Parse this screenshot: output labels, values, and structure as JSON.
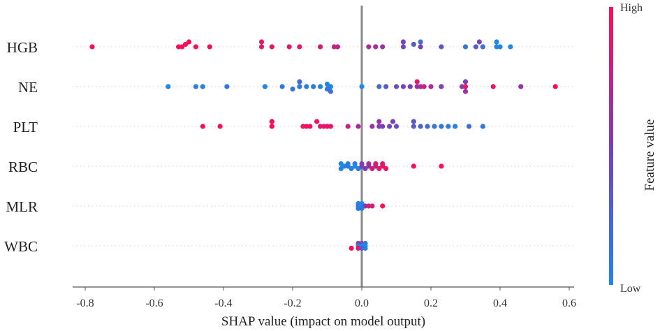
{
  "chart_data": {
    "type": "scatter",
    "subtype": "shap-beeswarm-summary",
    "title": "",
    "xlabel": "SHAP value (impact on model output)",
    "xlim": [
      -0.83,
      0.63
    ],
    "xticks": [
      "-0.8",
      "-0.6",
      "-0.4",
      "-0.2",
      "0.0",
      "0.2",
      "0.4",
      "0.6"
    ],
    "xtick_values": [
      -0.8,
      -0.6,
      -0.4,
      -0.2,
      0.0,
      0.2,
      0.4,
      0.6
    ],
    "colorbar": {
      "label": "Feature value",
      "high": "High",
      "low": "Low",
      "low_color": "#1e88e5",
      "high_color": "#ff0d57"
    },
    "features": [
      {
        "name": "HGB",
        "points": [
          {
            "x": -0.78,
            "v": 1.0,
            "r": 0
          },
          {
            "x": -0.53,
            "v": 1.0,
            "r": 0
          },
          {
            "x": -0.52,
            "v": 1.0,
            "r": 0
          },
          {
            "x": -0.51,
            "v": 1.0,
            "r": -1
          },
          {
            "x": -0.5,
            "v": 1.0,
            "r": -2
          },
          {
            "x": -0.48,
            "v": 1.0,
            "r": 0
          },
          {
            "x": -0.44,
            "v": 1.0,
            "r": 0
          },
          {
            "x": -0.29,
            "v": 0.9,
            "r": -2
          },
          {
            "x": -0.29,
            "v": 0.9,
            "r": 0
          },
          {
            "x": -0.26,
            "v": 0.9,
            "r": 0
          },
          {
            "x": -0.21,
            "v": 0.9,
            "r": 0
          },
          {
            "x": -0.18,
            "v": 0.9,
            "r": 0
          },
          {
            "x": -0.12,
            "v": 0.85,
            "r": 0
          },
          {
            "x": -0.08,
            "v": 0.8,
            "r": 0
          },
          {
            "x": -0.07,
            "v": 0.75,
            "r": 0
          },
          {
            "x": 0.02,
            "v": 0.7,
            "r": 0
          },
          {
            "x": 0.04,
            "v": 0.65,
            "r": 0
          },
          {
            "x": 0.06,
            "v": 0.6,
            "r": 0
          },
          {
            "x": 0.12,
            "v": 0.5,
            "r": -2
          },
          {
            "x": 0.12,
            "v": 0.45,
            "r": 0
          },
          {
            "x": 0.15,
            "v": 0.3,
            "r": -1
          },
          {
            "x": 0.17,
            "v": 0.2,
            "r": -2
          },
          {
            "x": 0.17,
            "v": 0.5,
            "r": 0
          },
          {
            "x": 0.23,
            "v": 0.35,
            "r": 0
          },
          {
            "x": 0.3,
            "v": 0.15,
            "r": 0
          },
          {
            "x": 0.33,
            "v": 0.3,
            "r": 0
          },
          {
            "x": 0.34,
            "v": 0.45,
            "r": -2
          },
          {
            "x": 0.35,
            "v": 0.2,
            "r": 0
          },
          {
            "x": 0.39,
            "v": 0.0,
            "r": -2
          },
          {
            "x": 0.39,
            "v": 0.0,
            "r": 0
          },
          {
            "x": 0.4,
            "v": 0.05,
            "r": 0
          },
          {
            "x": 0.43,
            "v": 0.0,
            "r": 0
          }
        ]
      },
      {
        "name": "NE",
        "points": [
          {
            "x": -0.56,
            "v": 0.0,
            "r": 0
          },
          {
            "x": -0.48,
            "v": 0.05,
            "r": 0
          },
          {
            "x": -0.46,
            "v": 0.05,
            "r": 0
          },
          {
            "x": -0.39,
            "v": 0.1,
            "r": 0
          },
          {
            "x": -0.28,
            "v": 0.05,
            "r": 0
          },
          {
            "x": -0.23,
            "v": 0.1,
            "r": 0
          },
          {
            "x": -0.2,
            "v": 0.15,
            "r": 1
          },
          {
            "x": -0.18,
            "v": 0.2,
            "r": -2
          },
          {
            "x": -0.18,
            "v": 0.1,
            "r": 0
          },
          {
            "x": -0.16,
            "v": 0.05,
            "r": 0
          },
          {
            "x": -0.14,
            "v": 0.1,
            "r": 0
          },
          {
            "x": -0.12,
            "v": 0.0,
            "r": 0
          },
          {
            "x": -0.1,
            "v": 0.05,
            "r": -1
          },
          {
            "x": -0.1,
            "v": 0.1,
            "r": 1
          },
          {
            "x": -0.09,
            "v": 0.05,
            "r": 0
          },
          {
            "x": -0.09,
            "v": 0.2,
            "r": 2
          },
          {
            "x": 0.0,
            "v": 0.0,
            "r": 0
          },
          {
            "x": 0.05,
            "v": 0.2,
            "r": 0
          },
          {
            "x": 0.07,
            "v": 0.3,
            "r": 0
          },
          {
            "x": 0.1,
            "v": 0.4,
            "r": 0
          },
          {
            "x": 0.12,
            "v": 0.45,
            "r": 0
          },
          {
            "x": 0.14,
            "v": 0.5,
            "r": 0
          },
          {
            "x": 0.16,
            "v": 0.9,
            "r": -2
          },
          {
            "x": 0.16,
            "v": 0.6,
            "r": 0
          },
          {
            "x": 0.17,
            "v": 0.7,
            "r": 0
          },
          {
            "x": 0.18,
            "v": 0.8,
            "r": 0
          },
          {
            "x": 0.2,
            "v": 0.7,
            "r": 0
          },
          {
            "x": 0.23,
            "v": 0.5,
            "r": 0
          },
          {
            "x": 0.29,
            "v": 0.6,
            "r": 0
          },
          {
            "x": 0.3,
            "v": 0.5,
            "r": -2
          },
          {
            "x": 0.3,
            "v": 0.9,
            "r": 0
          },
          {
            "x": 0.3,
            "v": 0.6,
            "r": 2
          },
          {
            "x": 0.38,
            "v": 0.9,
            "r": 0
          },
          {
            "x": 0.46,
            "v": 0.6,
            "r": 0
          },
          {
            "x": 0.56,
            "v": 1.0,
            "r": 0
          }
        ]
      },
      {
        "name": "PLT",
        "points": [
          {
            "x": -0.46,
            "v": 1.0,
            "r": 0
          },
          {
            "x": -0.41,
            "v": 1.0,
            "r": 0
          },
          {
            "x": -0.26,
            "v": 1.0,
            "r": -2
          },
          {
            "x": -0.26,
            "v": 1.0,
            "r": 0
          },
          {
            "x": -0.17,
            "v": 0.95,
            "r": 0
          },
          {
            "x": -0.16,
            "v": 0.95,
            "r": 0
          },
          {
            "x": -0.15,
            "v": 0.95,
            "r": 0
          },
          {
            "x": -0.13,
            "v": 0.95,
            "r": -2
          },
          {
            "x": -0.12,
            "v": 0.9,
            "r": 0
          },
          {
            "x": -0.11,
            "v": 0.9,
            "r": 0
          },
          {
            "x": -0.1,
            "v": 0.9,
            "r": 0
          },
          {
            "x": -0.09,
            "v": 0.9,
            "r": 0
          },
          {
            "x": -0.04,
            "v": 0.8,
            "r": 0
          },
          {
            "x": -0.01,
            "v": 0.7,
            "r": 0
          },
          {
            "x": 0.03,
            "v": 0.6,
            "r": 0
          },
          {
            "x": 0.05,
            "v": 0.6,
            "r": -2
          },
          {
            "x": 0.05,
            "v": 0.55,
            "r": 0
          },
          {
            "x": 0.06,
            "v": 0.5,
            "r": 0
          },
          {
            "x": 0.08,
            "v": 0.45,
            "r": 0
          },
          {
            "x": 0.09,
            "v": 0.5,
            "r": -2
          },
          {
            "x": 0.1,
            "v": 0.4,
            "r": 0
          },
          {
            "x": 0.15,
            "v": 0.35,
            "r": -2
          },
          {
            "x": 0.15,
            "v": 0.3,
            "r": 0
          },
          {
            "x": 0.17,
            "v": 0.25,
            "r": 0
          },
          {
            "x": 0.19,
            "v": 0.2,
            "r": 0
          },
          {
            "x": 0.21,
            "v": 0.15,
            "r": 0
          },
          {
            "x": 0.23,
            "v": 0.1,
            "r": 0
          },
          {
            "x": 0.25,
            "v": 0.1,
            "r": 0
          },
          {
            "x": 0.27,
            "v": 0.05,
            "r": 0
          },
          {
            "x": 0.31,
            "v": 0.2,
            "r": 0
          },
          {
            "x": 0.35,
            "v": 0.1,
            "r": 0
          }
        ]
      },
      {
        "name": "RBC",
        "points": [
          {
            "x": -0.06,
            "v": 0.0,
            "r": -1
          },
          {
            "x": -0.05,
            "v": 0.0,
            "r": 0
          },
          {
            "x": -0.06,
            "v": 0.05,
            "r": 1
          },
          {
            "x": -0.04,
            "v": 0.05,
            "r": -1
          },
          {
            "x": -0.04,
            "v": 0.1,
            "r": 0
          },
          {
            "x": -0.03,
            "v": 0.05,
            "r": 1
          },
          {
            "x": -0.02,
            "v": 0.1,
            "r": -1
          },
          {
            "x": -0.02,
            "v": 0.0,
            "r": 0
          },
          {
            "x": -0.01,
            "v": 0.05,
            "r": 1
          },
          {
            "x": 0.0,
            "v": 0.5,
            "r": -1
          },
          {
            "x": 0.0,
            "v": 0.5,
            "r": 0
          },
          {
            "x": 0.01,
            "v": 0.5,
            "r": 1
          },
          {
            "x": 0.02,
            "v": 0.7,
            "r": -1
          },
          {
            "x": 0.02,
            "v": 0.6,
            "r": 0
          },
          {
            "x": 0.03,
            "v": 0.8,
            "r": 1
          },
          {
            "x": 0.04,
            "v": 0.9,
            "r": -1
          },
          {
            "x": 0.04,
            "v": 0.75,
            "r": 0
          },
          {
            "x": 0.05,
            "v": 0.9,
            "r": 1
          },
          {
            "x": 0.06,
            "v": 0.9,
            "r": -1
          },
          {
            "x": 0.06,
            "v": 0.9,
            "r": 0
          },
          {
            "x": 0.07,
            "v": 0.95,
            "r": 1
          },
          {
            "x": 0.15,
            "v": 1.0,
            "r": 0
          },
          {
            "x": 0.23,
            "v": 1.0,
            "r": 0
          }
        ]
      },
      {
        "name": "MLR",
        "points": [
          {
            "x": -0.01,
            "v": 0.0,
            "r": -1
          },
          {
            "x": 0.0,
            "v": 0.0,
            "r": -1
          },
          {
            "x": -0.01,
            "v": 0.05,
            "r": 0
          },
          {
            "x": 0.0,
            "v": 0.05,
            "r": 0
          },
          {
            "x": 0.01,
            "v": 0.6,
            "r": 0
          },
          {
            "x": 0.02,
            "v": 0.8,
            "r": 0
          },
          {
            "x": 0.03,
            "v": 0.85,
            "r": 0
          },
          {
            "x": -0.01,
            "v": 0.1,
            "r": 1
          },
          {
            "x": 0.0,
            "v": 0.1,
            "r": 1
          },
          {
            "x": 0.06,
            "v": 1.0,
            "r": 0
          }
        ]
      },
      {
        "name": "WBC",
        "points": [
          {
            "x": -0.01,
            "v": 0.5,
            "r": -1
          },
          {
            "x": 0.0,
            "v": 0.6,
            "r": -1
          },
          {
            "x": 0.01,
            "v": 0.1,
            "r": -1
          },
          {
            "x": -0.01,
            "v": 0.05,
            "r": 0
          },
          {
            "x": 0.0,
            "v": 0.05,
            "r": 0
          },
          {
            "x": 0.01,
            "v": 0.0,
            "r": 0
          },
          {
            "x": -0.01,
            "v": 0.9,
            "r": 1
          },
          {
            "x": 0.0,
            "v": 0.3,
            "r": 1
          },
          {
            "x": 0.01,
            "v": 0.05,
            "r": 1
          },
          {
            "x": -0.03,
            "v": 1.0,
            "r": 1
          }
        ]
      }
    ]
  }
}
